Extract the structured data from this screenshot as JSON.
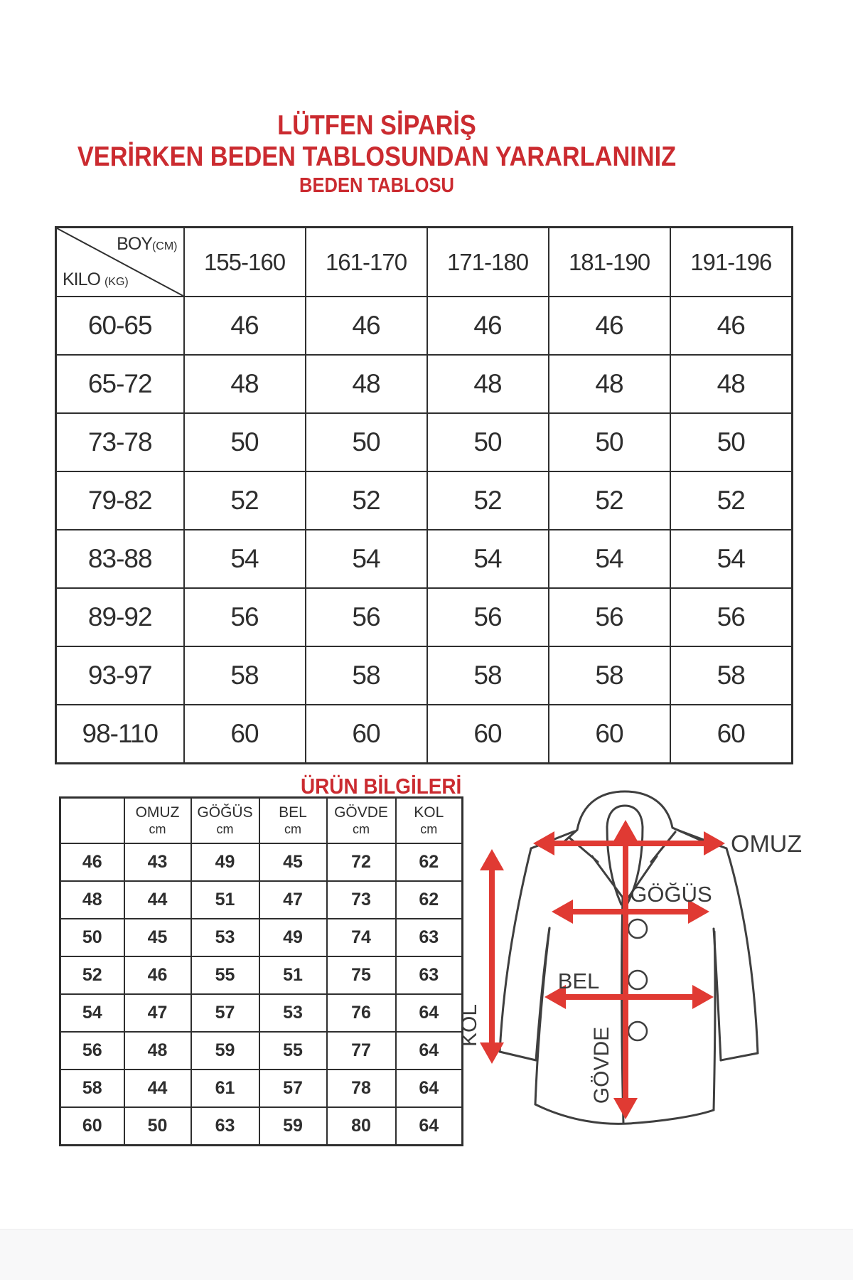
{
  "title": {
    "line1": "LÜTFEN SİPARİŞ",
    "line2": "VERİRKEN BEDEN TABLOSUNDAN YARARLANINIZ",
    "line3": "BEDEN TABLOSU"
  },
  "size_table": {
    "corner": {
      "top": "BOY",
      "top_unit": "(CM)",
      "bottom": "KILO",
      "bottom_unit": "(KG)"
    },
    "columns": [
      "155-160",
      "161-170",
      "171-180",
      "181-190",
      "191-196"
    ],
    "rows": [
      {
        "kilo": "60-65",
        "values": [
          "46",
          "46",
          "46",
          "46",
          "46"
        ]
      },
      {
        "kilo": "65-72",
        "values": [
          "48",
          "48",
          "48",
          "48",
          "48"
        ]
      },
      {
        "kilo": "73-78",
        "values": [
          "50",
          "50",
          "50",
          "50",
          "50"
        ]
      },
      {
        "kilo": "79-82",
        "values": [
          "52",
          "52",
          "52",
          "52",
          "52"
        ]
      },
      {
        "kilo": "83-88",
        "values": [
          "54",
          "54",
          "54",
          "54",
          "54"
        ]
      },
      {
        "kilo": "89-92",
        "values": [
          "56",
          "56",
          "56",
          "56",
          "56"
        ]
      },
      {
        "kilo": "93-97",
        "values": [
          "58",
          "58",
          "58",
          "58",
          "58"
        ]
      },
      {
        "kilo": "98-110",
        "values": [
          "60",
          "60",
          "60",
          "60",
          "60"
        ]
      }
    ]
  },
  "product_info": {
    "heading": "ÜRÜN BİLGİLERİ",
    "columns": [
      {
        "name": "OMUZ",
        "unit": "cm"
      },
      {
        "name": "GÖĞÜS",
        "unit": "cm"
      },
      {
        "name": "BEL",
        "unit": "cm"
      },
      {
        "name": "GÖVDE",
        "unit": "cm"
      },
      {
        "name": "KOL",
        "unit": "cm"
      }
    ],
    "rows": [
      {
        "size": "46",
        "values": [
          "43",
          "49",
          "45",
          "72",
          "62"
        ]
      },
      {
        "size": "48",
        "values": [
          "44",
          "51",
          "47",
          "73",
          "62"
        ]
      },
      {
        "size": "50",
        "values": [
          "45",
          "53",
          "49",
          "74",
          "63"
        ]
      },
      {
        "size": "52",
        "values": [
          "46",
          "55",
          "51",
          "75",
          "63"
        ]
      },
      {
        "size": "54",
        "values": [
          "47",
          "57",
          "53",
          "76",
          "64"
        ]
      },
      {
        "size": "56",
        "values": [
          "48",
          "59",
          "55",
          "77",
          "64"
        ]
      },
      {
        "size": "58",
        "values": [
          "44",
          "61",
          "57",
          "78",
          "64"
        ]
      },
      {
        "size": "60",
        "values": [
          "50",
          "63",
          "59",
          "80",
          "64"
        ]
      }
    ]
  },
  "diagram": {
    "labels": {
      "omuz": "OMUZ",
      "gogus": "GÖĞÜS",
      "bel": "BEL",
      "govde": "GÖVDE",
      "kol": "KOL"
    }
  },
  "colors": {
    "accent_red": "#cb2b30",
    "arrow_red": "#e03a33",
    "table_border": "#2f2f2f"
  }
}
